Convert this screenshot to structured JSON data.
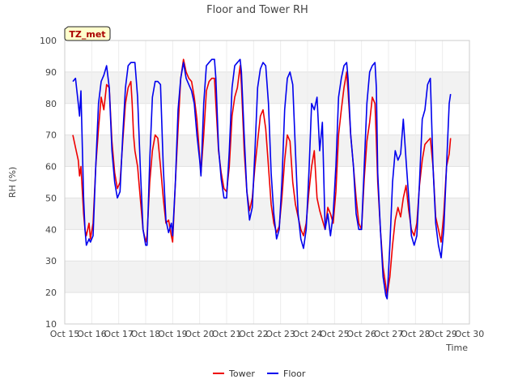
{
  "chart_data": {
    "type": "line",
    "title": "Floor and Tower RH",
    "xlabel": "Time",
    "ylabel": "RH (%)",
    "ylim": [
      10,
      100
    ],
    "xlim": [
      15,
      30
    ],
    "y_ticks": [
      10,
      20,
      30,
      40,
      50,
      60,
      70,
      80,
      90,
      100
    ],
    "x_ticks": [
      {
        "v": 15,
        "label": "Oct 15"
      },
      {
        "v": 16,
        "label": "Oct 16"
      },
      {
        "v": 17,
        "label": "Oct 17"
      },
      {
        "v": 18,
        "label": "Oct 18"
      },
      {
        "v": 19,
        "label": "Oct 19"
      },
      {
        "v": 20,
        "label": "Oct 20"
      },
      {
        "v": 21,
        "label": "Oct 21"
      },
      {
        "v": 22,
        "label": "Oct 22"
      },
      {
        "v": 23,
        "label": "Oct 23"
      },
      {
        "v": 24,
        "label": "Oct 24"
      },
      {
        "v": 25,
        "label": "Oct 25"
      },
      {
        "v": 26,
        "label": "Oct 26"
      },
      {
        "v": 27,
        "label": "Oct 27"
      },
      {
        "v": 28,
        "label": "Oct 28"
      },
      {
        "v": 29,
        "label": "Oct 29"
      },
      {
        "v": 30,
        "label": "Oct 30"
      }
    ],
    "annotation": "TZ_met",
    "legend_position": "bottom-center",
    "background_bands": true,
    "series": [
      {
        "name": "Tower",
        "color": "#ee0000",
        "points": [
          [
            15.3,
            70
          ],
          [
            15.4,
            66
          ],
          [
            15.5,
            62
          ],
          [
            15.55,
            57
          ],
          [
            15.6,
            60
          ],
          [
            15.7,
            45
          ],
          [
            15.75,
            40
          ],
          [
            15.8,
            38
          ],
          [
            15.9,
            42
          ],
          [
            15.95,
            37
          ],
          [
            16.05,
            42
          ],
          [
            16.15,
            60
          ],
          [
            16.25,
            72
          ],
          [
            16.35,
            82
          ],
          [
            16.45,
            78
          ],
          [
            16.55,
            86
          ],
          [
            16.65,
            85
          ],
          [
            16.75,
            68
          ],
          [
            16.85,
            58
          ],
          [
            16.95,
            53
          ],
          [
            17.05,
            55
          ],
          [
            17.15,
            68
          ],
          [
            17.25,
            80
          ],
          [
            17.35,
            85
          ],
          [
            17.45,
            87
          ],
          [
            17.5,
            80
          ],
          [
            17.55,
            70
          ],
          [
            17.6,
            65
          ],
          [
            17.7,
            60
          ],
          [
            17.8,
            50
          ],
          [
            17.9,
            40
          ],
          [
            18.0,
            36
          ],
          [
            18.05,
            38
          ],
          [
            18.15,
            55
          ],
          [
            18.25,
            65
          ],
          [
            18.35,
            70
          ],
          [
            18.45,
            69
          ],
          [
            18.55,
            60
          ],
          [
            18.65,
            50
          ],
          [
            18.75,
            42
          ],
          [
            18.85,
            43
          ],
          [
            18.95,
            38
          ],
          [
            19.0,
            36
          ],
          [
            19.1,
            55
          ],
          [
            19.2,
            72
          ],
          [
            19.3,
            88
          ],
          [
            19.4,
            94
          ],
          [
            19.5,
            90
          ],
          [
            19.6,
            88
          ],
          [
            19.7,
            87
          ],
          [
            19.8,
            82
          ],
          [
            19.9,
            75
          ],
          [
            20.0,
            63
          ],
          [
            20.05,
            58
          ],
          [
            20.15,
            70
          ],
          [
            20.25,
            84
          ],
          [
            20.35,
            87
          ],
          [
            20.45,
            88
          ],
          [
            20.55,
            88
          ],
          [
            20.6,
            80
          ],
          [
            20.7,
            65
          ],
          [
            20.8,
            58
          ],
          [
            20.9,
            53
          ],
          [
            21.0,
            52
          ],
          [
            21.1,
            60
          ],
          [
            21.2,
            76
          ],
          [
            21.3,
            82
          ],
          [
            21.4,
            85
          ],
          [
            21.5,
            92
          ],
          [
            21.55,
            86
          ],
          [
            21.65,
            65
          ],
          [
            21.75,
            52
          ],
          [
            21.85,
            46
          ],
          [
            21.95,
            50
          ],
          [
            22.05,
            60
          ],
          [
            22.15,
            68
          ],
          [
            22.25,
            76
          ],
          [
            22.35,
            78
          ],
          [
            22.45,
            72
          ],
          [
            22.55,
            60
          ],
          [
            22.65,
            48
          ],
          [
            22.75,
            42
          ],
          [
            22.85,
            39
          ],
          [
            22.95,
            41
          ],
          [
            23.05,
            50
          ],
          [
            23.15,
            62
          ],
          [
            23.25,
            70
          ],
          [
            23.35,
            68
          ],
          [
            23.45,
            55
          ],
          [
            23.55,
            48
          ],
          [
            23.65,
            44
          ],
          [
            23.75,
            40
          ],
          [
            23.85,
            38
          ],
          [
            23.95,
            42
          ],
          [
            24.05,
            52
          ],
          [
            24.15,
            60
          ],
          [
            24.25,
            65
          ],
          [
            24.35,
            50
          ],
          [
            24.45,
            46
          ],
          [
            24.55,
            43
          ],
          [
            24.65,
            40
          ],
          [
            24.75,
            47
          ],
          [
            24.85,
            45
          ],
          [
            24.95,
            42
          ],
          [
            25.05,
            52
          ],
          [
            25.15,
            70
          ],
          [
            25.25,
            78
          ],
          [
            25.35,
            85
          ],
          [
            25.45,
            90
          ],
          [
            25.5,
            84
          ],
          [
            25.6,
            70
          ],
          [
            25.7,
            60
          ],
          [
            25.8,
            50
          ],
          [
            25.9,
            42
          ],
          [
            26.0,
            40
          ],
          [
            26.1,
            56
          ],
          [
            26.2,
            68
          ],
          [
            26.3,
            74
          ],
          [
            26.4,
            82
          ],
          [
            26.5,
            80
          ],
          [
            26.55,
            68
          ],
          [
            26.6,
            55
          ],
          [
            26.7,
            40
          ],
          [
            26.8,
            28
          ],
          [
            26.9,
            22
          ],
          [
            26.95,
            19
          ],
          [
            27.05,
            25
          ],
          [
            27.15,
            35
          ],
          [
            27.25,
            43
          ],
          [
            27.35,
            47
          ],
          [
            27.45,
            44
          ],
          [
            27.55,
            50
          ],
          [
            27.65,
            54
          ],
          [
            27.75,
            46
          ],
          [
            27.85,
            40
          ],
          [
            27.95,
            38
          ],
          [
            28.05,
            42
          ],
          [
            28.15,
            54
          ],
          [
            28.25,
            62
          ],
          [
            28.35,
            67
          ],
          [
            28.45,
            68
          ],
          [
            28.55,
            69
          ],
          [
            28.65,
            60
          ],
          [
            28.75,
            44
          ],
          [
            28.85,
            40
          ],
          [
            28.95,
            36
          ],
          [
            29.05,
            45
          ],
          [
            29.15,
            60
          ],
          [
            29.25,
            64
          ],
          [
            29.3,
            69
          ]
        ]
      },
      {
        "name": "Floor",
        "color": "#0000ee",
        "points": [
          [
            15.3,
            87
          ],
          [
            15.4,
            88
          ],
          [
            15.5,
            80
          ],
          [
            15.55,
            76
          ],
          [
            15.6,
            84
          ],
          [
            15.7,
            50
          ],
          [
            15.75,
            40
          ],
          [
            15.8,
            35
          ],
          [
            15.9,
            37
          ],
          [
            15.95,
            36
          ],
          [
            16.05,
            38
          ],
          [
            16.15,
            60
          ],
          [
            16.25,
            80
          ],
          [
            16.35,
            87
          ],
          [
            16.45,
            89
          ],
          [
            16.55,
            92
          ],
          [
            16.65,
            85
          ],
          [
            16.75,
            65
          ],
          [
            16.85,
            55
          ],
          [
            16.95,
            50
          ],
          [
            17.05,
            52
          ],
          [
            17.15,
            70
          ],
          [
            17.25,
            85
          ],
          [
            17.35,
            92
          ],
          [
            17.45,
            93
          ],
          [
            17.6,
            93
          ],
          [
            17.7,
            82
          ],
          [
            17.8,
            60
          ],
          [
            17.9,
            40
          ],
          [
            18.0,
            35
          ],
          [
            18.05,
            35
          ],
          [
            18.15,
            62
          ],
          [
            18.25,
            82
          ],
          [
            18.35,
            87
          ],
          [
            18.45,
            87
          ],
          [
            18.55,
            86
          ],
          [
            18.65,
            60
          ],
          [
            18.75,
            43
          ],
          [
            18.85,
            39
          ],
          [
            18.95,
            42
          ],
          [
            19.0,
            38
          ],
          [
            19.1,
            55
          ],
          [
            19.2,
            78
          ],
          [
            19.3,
            88
          ],
          [
            19.4,
            93
          ],
          [
            19.5,
            88
          ],
          [
            19.6,
            86
          ],
          [
            19.7,
            84
          ],
          [
            19.8,
            80
          ],
          [
            19.9,
            70
          ],
          [
            20.0,
            62
          ],
          [
            20.05,
            57
          ],
          [
            20.15,
            80
          ],
          [
            20.25,
            92
          ],
          [
            20.35,
            93
          ],
          [
            20.45,
            94
          ],
          [
            20.55,
            94
          ],
          [
            20.6,
            88
          ],
          [
            20.7,
            66
          ],
          [
            20.8,
            56
          ],
          [
            20.9,
            50
          ],
          [
            21.0,
            50
          ],
          [
            21.1,
            65
          ],
          [
            21.2,
            85
          ],
          [
            21.3,
            92
          ],
          [
            21.4,
            93
          ],
          [
            21.5,
            94
          ],
          [
            21.55,
            90
          ],
          [
            21.65,
            70
          ],
          [
            21.75,
            52
          ],
          [
            21.85,
            43
          ],
          [
            21.95,
            47
          ],
          [
            22.05,
            65
          ],
          [
            22.15,
            85
          ],
          [
            22.25,
            91
          ],
          [
            22.35,
            93
          ],
          [
            22.45,
            92
          ],
          [
            22.55,
            80
          ],
          [
            22.65,
            58
          ],
          [
            22.75,
            45
          ],
          [
            22.85,
            37
          ],
          [
            22.95,
            40
          ],
          [
            23.05,
            55
          ],
          [
            23.15,
            78
          ],
          [
            23.25,
            88
          ],
          [
            23.35,
            90
          ],
          [
            23.45,
            86
          ],
          [
            23.55,
            65
          ],
          [
            23.65,
            45
          ],
          [
            23.75,
            37
          ],
          [
            23.85,
            34
          ],
          [
            23.95,
            40
          ],
          [
            24.05,
            58
          ],
          [
            24.15,
            80
          ],
          [
            24.25,
            78
          ],
          [
            24.35,
            82
          ],
          [
            24.45,
            65
          ],
          [
            24.55,
            74
          ],
          [
            24.65,
            40
          ],
          [
            24.75,
            45
          ],
          [
            24.85,
            38
          ],
          [
            24.95,
            45
          ],
          [
            25.05,
            60
          ],
          [
            25.15,
            82
          ],
          [
            25.25,
            88
          ],
          [
            25.35,
            92
          ],
          [
            25.45,
            93
          ],
          [
            25.5,
            88
          ],
          [
            25.6,
            70
          ],
          [
            25.7,
            60
          ],
          [
            25.8,
            45
          ],
          [
            25.9,
            40
          ],
          [
            26.0,
            40
          ],
          [
            26.1,
            60
          ],
          [
            26.2,
            80
          ],
          [
            26.3,
            90
          ],
          [
            26.4,
            92
          ],
          [
            26.5,
            93
          ],
          [
            26.55,
            85
          ],
          [
            26.6,
            58
          ],
          [
            26.7,
            40
          ],
          [
            26.8,
            25
          ],
          [
            26.9,
            19
          ],
          [
            26.95,
            18
          ],
          [
            27.05,
            35
          ],
          [
            27.15,
            55
          ],
          [
            27.25,
            65
          ],
          [
            27.35,
            62
          ],
          [
            27.45,
            64
          ],
          [
            27.55,
            75
          ],
          [
            27.65,
            62
          ],
          [
            27.75,
            50
          ],
          [
            27.85,
            38
          ],
          [
            27.95,
            35
          ],
          [
            28.05,
            38
          ],
          [
            28.15,
            55
          ],
          [
            28.25,
            75
          ],
          [
            28.35,
            78
          ],
          [
            28.45,
            86
          ],
          [
            28.55,
            88
          ],
          [
            28.65,
            60
          ],
          [
            28.75,
            42
          ],
          [
            28.85,
            35
          ],
          [
            28.95,
            31
          ],
          [
            29.05,
            40
          ],
          [
            29.15,
            60
          ],
          [
            29.25,
            80
          ],
          [
            29.3,
            83
          ]
        ]
      }
    ]
  }
}
